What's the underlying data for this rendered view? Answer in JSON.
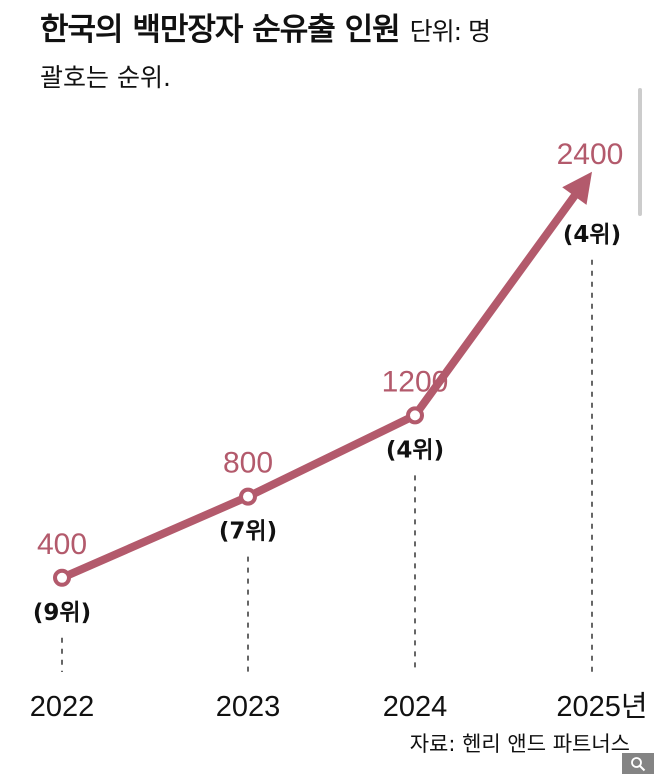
{
  "chart_data": {
    "type": "line",
    "title": "한국의 백만장자 순유출 인원",
    "unit_label": "단위: 명",
    "subtitle": "괄호는 순위.",
    "categories": [
      "2022",
      "2023",
      "2024",
      "2025년"
    ],
    "values": [
      400,
      800,
      1200,
      2400
    ],
    "value_labels": [
      "400",
      "800",
      "1200",
      "2400"
    ],
    "rank_labels": [
      "(9위)",
      "(7위)",
      "(4위)",
      "(4위)"
    ],
    "source": "자료: 헨리 앤드 파트너스",
    "grid": false,
    "line_color": "#b35a6c"
  },
  "ui": {
    "zoom_icon": "magnifier-icon"
  }
}
